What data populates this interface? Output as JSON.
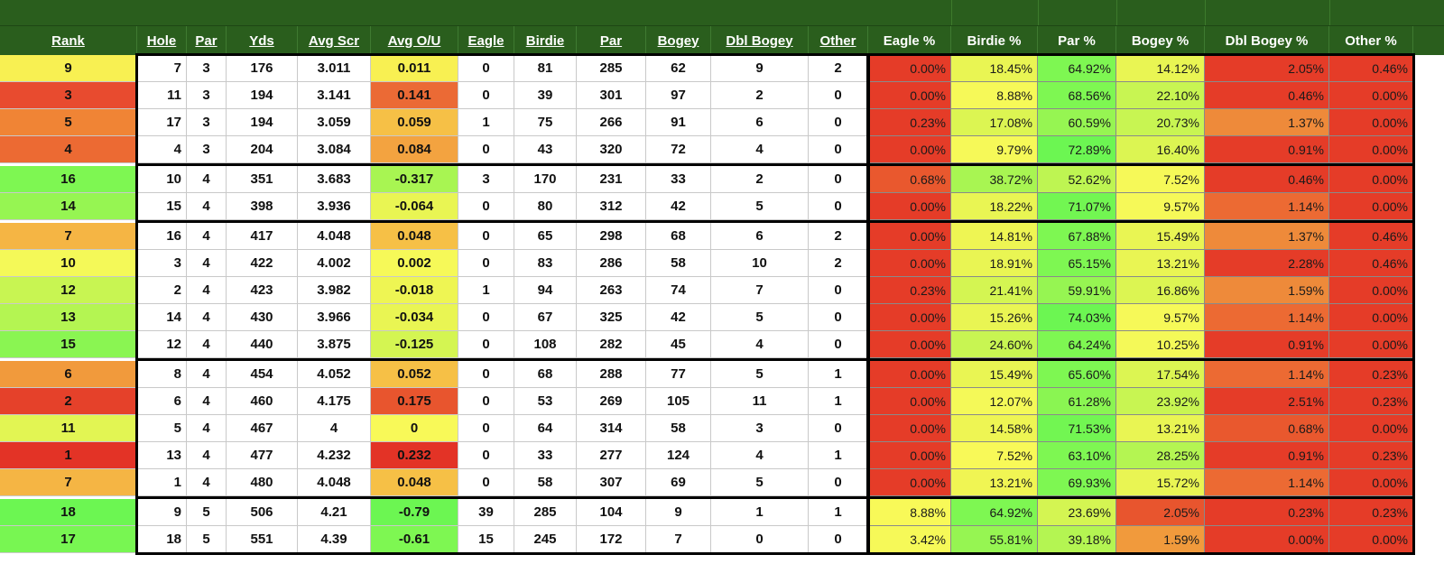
{
  "headers": [
    "Rank",
    "Hole",
    "Par",
    "Yds",
    "Avg Scr",
    "Avg O/U",
    "Eagle",
    "Birdie",
    "Par",
    "Bogey",
    "Dbl Bogey",
    "Other",
    "Eagle %",
    "Birdie %",
    "Par %",
    "Bogey %",
    "Dbl Bogey %",
    "Other %"
  ],
  "colors": {
    "header_bg": "#2a5e1d",
    "header_text": "#ffffff"
  },
  "rows": [
    {
      "rank": "9",
      "hole": "7",
      "par": "3",
      "yds": "176",
      "avg_scr": "3.011",
      "avg_ou": "0.011",
      "eagle": "0",
      "birdie": "81",
      "par_count": "285",
      "bogey": "62",
      "dbl_bogey": "9",
      "other": "2",
      "pcts": [
        "0.00%",
        "18.45%",
        "64.92%",
        "14.12%",
        "2.05%",
        "0.46%"
      ],
      "rank_color": "#f8f052",
      "ou_color": "#f8f052",
      "pct_colors": [
        "#e53c28",
        "#e9f553",
        "#7ef752",
        "#e9f553",
        "#e53c28",
        "#e53c28"
      ]
    },
    {
      "rank": "3",
      "hole": "11",
      "par": "3",
      "yds": "194",
      "avg_scr": "3.141",
      "avg_ou": "0.141",
      "eagle": "0",
      "birdie": "39",
      "par_count": "301",
      "bogey": "97",
      "dbl_bogey": "2",
      "other": "0",
      "pcts": [
        "0.00%",
        "8.88%",
        "68.56%",
        "22.10%",
        "0.46%",
        "0.00%"
      ],
      "rank_color": "#e84b2f",
      "ou_color": "#eb6a35",
      "pct_colors": [
        "#e53c28",
        "#f6f958",
        "#7ef752",
        "#c8f552",
        "#e53c28",
        "#e53c28"
      ]
    },
    {
      "rank": "5",
      "hole": "17",
      "par": "3",
      "yds": "194",
      "avg_scr": "3.059",
      "avg_ou": "0.059",
      "eagle": "1",
      "birdie": "75",
      "par_count": "266",
      "bogey": "91",
      "dbl_bogey": "6",
      "other": "0",
      "pcts": [
        "0.23%",
        "17.08%",
        "60.59%",
        "20.73%",
        "1.37%",
        "0.00%"
      ],
      "rank_color": "#f08435",
      "ou_color": "#f6c046",
      "pct_colors": [
        "#e53c28",
        "#dcf552",
        "#96f552",
        "#c8f552",
        "#ee8a3a",
        "#e53c28"
      ]
    },
    {
      "rank": "4",
      "hole": "4",
      "par": "3",
      "yds": "204",
      "avg_scr": "3.084",
      "avg_ou": "0.084",
      "eagle": "0",
      "birdie": "43",
      "par_count": "320",
      "bogey": "72",
      "dbl_bogey": "4",
      "other": "0",
      "pcts": [
        "0.00%",
        "9.79%",
        "72.89%",
        "16.40%",
        "0.91%",
        "0.00%"
      ],
      "rank_color": "#ec6a33",
      "ou_color": "#f3a340",
      "pct_colors": [
        "#e53c28",
        "#f6f958",
        "#6cf652",
        "#dcf552",
        "#e53c28",
        "#e53c28"
      ]
    },
    {
      "rank": "16",
      "hole": "10",
      "par": "4",
      "yds": "351",
      "avg_scr": "3.683",
      "avg_ou": "-0.317",
      "eagle": "3",
      "birdie": "170",
      "par_count": "231",
      "bogey": "33",
      "dbl_bogey": "2",
      "other": "0",
      "pcts": [
        "0.68%",
        "38.72%",
        "52.62%",
        "7.52%",
        "0.46%",
        "0.00%"
      ],
      "rank_color": "#7ef752",
      "ou_color": "#a8f552",
      "pct_colors": [
        "#e9582e",
        "#a8f552",
        "#bef552",
        "#f6f958",
        "#e53c28",
        "#e53c28"
      ]
    },
    {
      "rank": "14",
      "hole": "15",
      "par": "4",
      "yds": "398",
      "avg_scr": "3.936",
      "avg_ou": "-0.064",
      "eagle": "0",
      "birdie": "80",
      "par_count": "312",
      "bogey": "42",
      "dbl_bogey": "5",
      "other": "0",
      "pcts": [
        "0.00%",
        "18.22%",
        "71.07%",
        "9.57%",
        "1.14%",
        "0.00%"
      ],
      "rank_color": "#96f552",
      "ou_color": "#e9f553",
      "pct_colors": [
        "#e53c28",
        "#e9f553",
        "#72f652",
        "#f6f958",
        "#ec6a33",
        "#e53c28"
      ]
    },
    {
      "rank": "7",
      "hole": "16",
      "par": "4",
      "yds": "417",
      "avg_scr": "4.048",
      "avg_ou": "0.048",
      "eagle": "0",
      "birdie": "65",
      "par_count": "298",
      "bogey": "68",
      "dbl_bogey": "6",
      "other": "2",
      "pcts": [
        "0.00%",
        "14.81%",
        "67.88%",
        "15.49%",
        "1.37%",
        "0.46%"
      ],
      "rank_color": "#f5b544",
      "ou_color": "#f6c046",
      "pct_colors": [
        "#e53c28",
        "#eef553",
        "#7ef752",
        "#e9f553",
        "#ee8a3a",
        "#e53c28"
      ]
    },
    {
      "rank": "10",
      "hole": "3",
      "par": "4",
      "yds": "422",
      "avg_scr": "4.002",
      "avg_ou": "0.002",
      "eagle": "0",
      "birdie": "83",
      "par_count": "286",
      "bogey": "58",
      "dbl_bogey": "10",
      "other": "2",
      "pcts": [
        "0.00%",
        "18.91%",
        "65.15%",
        "13.21%",
        "2.28%",
        "0.46%"
      ],
      "rank_color": "#f4f958",
      "ou_color": "#f6f958",
      "pct_colors": [
        "#e53c28",
        "#e9f553",
        "#7ef752",
        "#e9f553",
        "#e53c28",
        "#e53c28"
      ]
    },
    {
      "rank": "12",
      "hole": "2",
      "par": "4",
      "yds": "423",
      "avg_scr": "3.982",
      "avg_ou": "-0.018",
      "eagle": "1",
      "birdie": "94",
      "par_count": "263",
      "bogey": "74",
      "dbl_bogey": "7",
      "other": "0",
      "pcts": [
        "0.23%",
        "21.41%",
        "59.91%",
        "16.86%",
        "1.59%",
        "0.00%"
      ],
      "rank_color": "#c8f552",
      "ou_color": "#eef553",
      "pct_colors": [
        "#e53c28",
        "#d4f552",
        "#96f552",
        "#dcf552",
        "#ee8a3a",
        "#e53c28"
      ]
    },
    {
      "rank": "13",
      "hole": "14",
      "par": "4",
      "yds": "430",
      "avg_scr": "3.966",
      "avg_ou": "-0.034",
      "eagle": "0",
      "birdie": "67",
      "par_count": "325",
      "bogey": "42",
      "dbl_bogey": "5",
      "other": "0",
      "pcts": [
        "0.00%",
        "15.26%",
        "74.03%",
        "9.57%",
        "1.14%",
        "0.00%"
      ],
      "rank_color": "#b4f552",
      "ou_color": "#e9f553",
      "pct_colors": [
        "#e53c28",
        "#e9f553",
        "#6cf652",
        "#f6f958",
        "#ec6a33",
        "#e53c28"
      ]
    },
    {
      "rank": "15",
      "hole": "12",
      "par": "4",
      "yds": "440",
      "avg_scr": "3.875",
      "avg_ou": "-0.125",
      "eagle": "0",
      "birdie": "108",
      "par_count": "282",
      "bogey": "45",
      "dbl_bogey": "4",
      "other": "0",
      "pcts": [
        "0.00%",
        "24.60%",
        "64.24%",
        "10.25%",
        "0.91%",
        "0.00%"
      ],
      "rank_color": "#8af552",
      "ou_color": "#d4f552",
      "pct_colors": [
        "#e53c28",
        "#c8f552",
        "#7ef752",
        "#f4f958",
        "#e53c28",
        "#e53c28"
      ]
    },
    {
      "rank": "6",
      "hole": "8",
      "par": "4",
      "yds": "454",
      "avg_scr": "4.052",
      "avg_ou": "0.052",
      "eagle": "0",
      "birdie": "68",
      "par_count": "288",
      "bogey": "77",
      "dbl_bogey": "5",
      "other": "1",
      "pcts": [
        "0.00%",
        "15.49%",
        "65.60%",
        "17.54%",
        "1.14%",
        "0.23%"
      ],
      "rank_color": "#f19a3c",
      "ou_color": "#f6c046",
      "pct_colors": [
        "#e53c28",
        "#e9f553",
        "#7ef752",
        "#dcf552",
        "#ec6a33",
        "#e53c28"
      ]
    },
    {
      "rank": "2",
      "hole": "6",
      "par": "4",
      "yds": "460",
      "avg_scr": "4.175",
      "avg_ou": "0.175",
      "eagle": "0",
      "birdie": "53",
      "par_count": "269",
      "bogey": "105",
      "dbl_bogey": "11",
      "other": "1",
      "pcts": [
        "0.00%",
        "12.07%",
        "61.28%",
        "23.92%",
        "2.51%",
        "0.23%"
      ],
      "rank_color": "#e5412a",
      "ou_color": "#e8552e",
      "pct_colors": [
        "#e53c28",
        "#f4f958",
        "#8af552",
        "#c8f552",
        "#e53c28",
        "#e53c28"
      ]
    },
    {
      "rank": "11",
      "hole": "5",
      "par": "4",
      "yds": "467",
      "avg_scr": "4",
      "avg_ou": "0",
      "eagle": "0",
      "birdie": "64",
      "par_count": "314",
      "bogey": "58",
      "dbl_bogey": "3",
      "other": "0",
      "pcts": [
        "0.00%",
        "14.58%",
        "71.53%",
        "13.21%",
        "0.68%",
        "0.00%"
      ],
      "rank_color": "#e2f553",
      "ou_color": "#f8f958",
      "pct_colors": [
        "#e53c28",
        "#eef553",
        "#72f652",
        "#e9f553",
        "#e9582e",
        "#e53c28"
      ]
    },
    {
      "rank": "1",
      "hole": "13",
      "par": "4",
      "yds": "477",
      "avg_scr": "4.232",
      "avg_ou": "0.232",
      "eagle": "0",
      "birdie": "33",
      "par_count": "277",
      "bogey": "124",
      "dbl_bogey": "4",
      "other": "1",
      "pcts": [
        "0.00%",
        "7.52%",
        "63.10%",
        "28.25%",
        "0.91%",
        "0.23%"
      ],
      "rank_color": "#e33326",
      "ou_color": "#e33326",
      "pct_colors": [
        "#e53c28",
        "#f8f958",
        "#7ef752",
        "#b4f552",
        "#e53c28",
        "#e53c28"
      ]
    },
    {
      "rank": "7",
      "hole": "1",
      "par": "4",
      "yds": "480",
      "avg_scr": "4.048",
      "avg_ou": "0.048",
      "eagle": "0",
      "birdie": "58",
      "par_count": "307",
      "bogey": "69",
      "dbl_bogey": "5",
      "other": "0",
      "pcts": [
        "0.00%",
        "13.21%",
        "69.93%",
        "15.72%",
        "1.14%",
        "0.00%"
      ],
      "rank_color": "#f5b544",
      "ou_color": "#f6c046",
      "pct_colors": [
        "#e53c28",
        "#f0f553",
        "#7ef752",
        "#e9f553",
        "#ec6a33",
        "#e53c28"
      ]
    },
    {
      "rank": "18",
      "hole": "9",
      "par": "5",
      "yds": "506",
      "avg_scr": "4.21",
      "avg_ou": "-0.79",
      "eagle": "39",
      "birdie": "285",
      "par_count": "104",
      "bogey": "9",
      "dbl_bogey": "1",
      "other": "1",
      "pcts": [
        "8.88%",
        "64.92%",
        "23.69%",
        "2.05%",
        "0.23%",
        "0.23%"
      ],
      "rank_color": "#6cf652",
      "ou_color": "#6cf652",
      "pct_colors": [
        "#f8f958",
        "#7ef752",
        "#d4f552",
        "#e8552e",
        "#e53c28",
        "#e53c28"
      ]
    },
    {
      "rank": "17",
      "hole": "18",
      "par": "5",
      "yds": "551",
      "avg_scr": "4.39",
      "avg_ou": "-0.61",
      "eagle": "15",
      "birdie": "245",
      "par_count": "172",
      "bogey": "7",
      "dbl_bogey": "0",
      "other": "0",
      "pcts": [
        "3.42%",
        "55.81%",
        "39.18%",
        "1.59%",
        "0.00%",
        "0.00%"
      ],
      "rank_color": "#78f652",
      "ou_color": "#7ef752",
      "pct_colors": [
        "#f6f958",
        "#96f552",
        "#b4f552",
        "#f19a3c",
        "#e53c28",
        "#e53c28"
      ]
    }
  ]
}
